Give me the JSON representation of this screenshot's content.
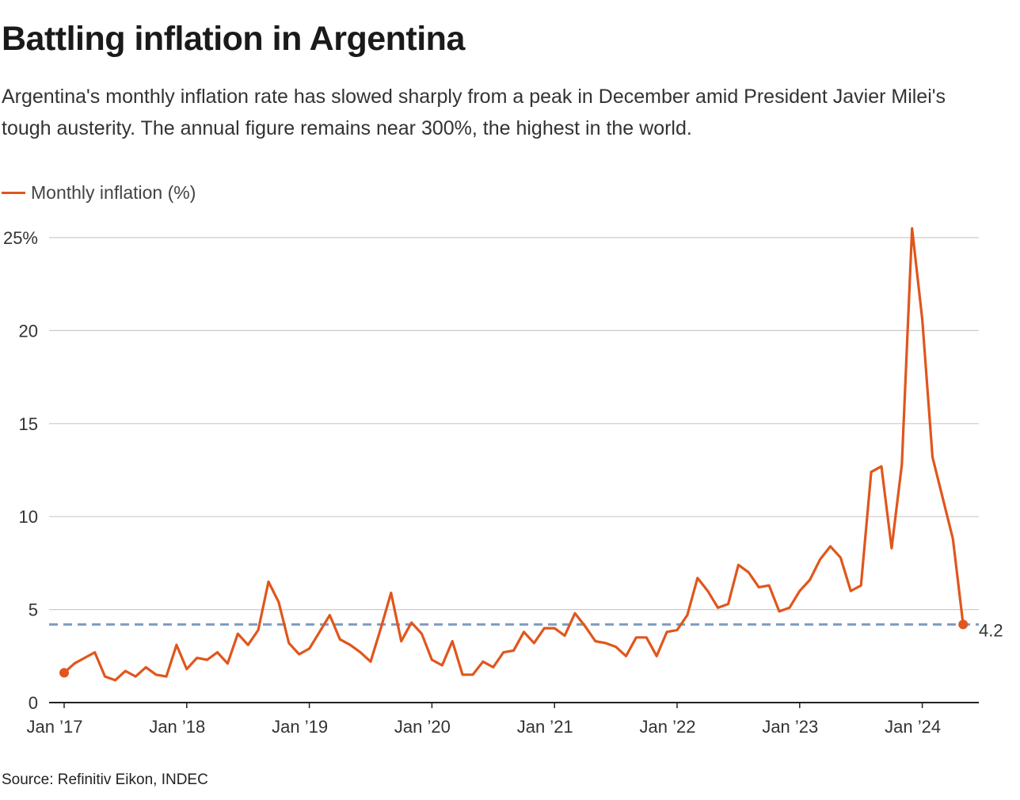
{
  "title": "Battling inflation in Argentina",
  "subtitle": "Argentina's monthly inflation rate has slowed sharply from a peak in December amid President Javier Milei's tough austerity. The annual figure remains near 300%, the highest in the world.",
  "source": "Source: Refinitiv Eikon, INDEC",
  "colors": {
    "series": "#e0561d",
    "reference_line": "#7f9cc2",
    "grid": "#cccccc",
    "axis": "#222222"
  },
  "chart_data": {
    "type": "line",
    "x_start": "2017-01",
    "ylim": [
      0,
      25
    ],
    "y_ticks": [
      {
        "value": 0,
        "label": "0"
      },
      {
        "value": 5,
        "label": "5"
      },
      {
        "value": 10,
        "label": "10"
      },
      {
        "value": 15,
        "label": "15"
      },
      {
        "value": 20,
        "label": "20"
      },
      {
        "value": 25,
        "label": "25%"
      }
    ],
    "x_ticks": [
      {
        "index": 0,
        "label": "Jan ’17"
      },
      {
        "index": 12,
        "label": "Jan ’18"
      },
      {
        "index": 24,
        "label": "Jan ’19"
      },
      {
        "index": 36,
        "label": "Jan ’20"
      },
      {
        "index": 48,
        "label": "Jan ’21"
      },
      {
        "index": 60,
        "label": "Jan ’22"
      },
      {
        "index": 72,
        "label": "Jan ’23"
      },
      {
        "index": 84,
        "label": "Jan ’24"
      }
    ],
    "series": [
      {
        "name": "Monthly inflation (%)",
        "values": [
          1.6,
          2.1,
          2.4,
          2.7,
          1.4,
          1.2,
          1.7,
          1.4,
          1.9,
          1.5,
          1.4,
          3.1,
          1.8,
          2.4,
          2.3,
          2.7,
          2.1,
          3.7,
          3.1,
          3.9,
          6.5,
          5.4,
          3.2,
          2.6,
          2.9,
          3.8,
          4.7,
          3.4,
          3.1,
          2.7,
          2.2,
          4.0,
          5.9,
          3.3,
          4.3,
          3.7,
          2.3,
          2.0,
          3.3,
          1.5,
          1.5,
          2.2,
          1.9,
          2.7,
          2.8,
          3.8,
          3.2,
          4.0,
          4.0,
          3.6,
          4.8,
          4.1,
          3.3,
          3.2,
          3.0,
          2.5,
          3.5,
          3.5,
          2.5,
          3.8,
          3.9,
          4.7,
          6.7,
          6.0,
          5.1,
          5.3,
          7.4,
          7.0,
          6.2,
          6.3,
          4.9,
          5.1,
          6.0,
          6.6,
          7.7,
          8.4,
          7.8,
          6.0,
          6.3,
          12.4,
          12.7,
          8.3,
          12.8,
          25.5,
          20.6,
          13.2,
          11.0,
          8.8,
          4.2
        ]
      }
    ],
    "reference_line": {
      "value": 4.2,
      "label": "4.2"
    }
  }
}
